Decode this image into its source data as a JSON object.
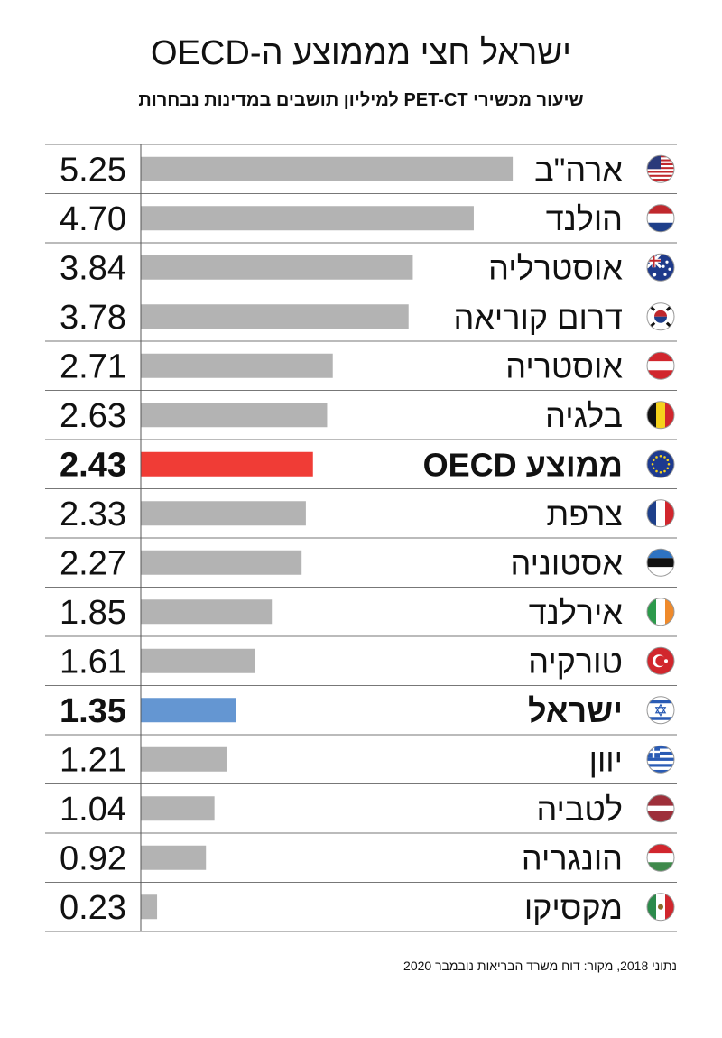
{
  "title": "ישראל חצי מממוצע ה-OECD",
  "subtitle": "שיעור מכשירי PET-CT למיליון תושבים במדינות נבחרות",
  "footer": "נתוני 2018, מקור: דוח משרד הבריאות נובמבר 2020",
  "colors": {
    "default": "#b3b3b3",
    "oecd": "#f03c36",
    "israel": "#6496d2"
  },
  "chart_data": {
    "type": "bar",
    "orientation": "horizontal",
    "title": "ישראל חצי מממוצע ה-OECD",
    "subtitle": "שיעור מכשירי PET-CT למיליון תושבים במדינות נבחרות",
    "xlim": [
      0,
      6
    ],
    "grid": "horizontal row separators",
    "categories": [
      "ארה\"ב",
      "הולנד",
      "אוסטרליה",
      "דרום קוריאה",
      "אוסטריה",
      "בלגיה",
      "ממוצע OECD",
      "צרפת",
      "אסטוניה",
      "אירלנד",
      "טורקיה",
      "ישראל",
      "יוון",
      "לטביה",
      "הונגריה",
      "מקסיקו"
    ],
    "labels": [
      "5.25",
      "4.70",
      "3.84",
      "3.78",
      "2.71",
      "2.63",
      "2.43",
      "2.33",
      "2.27",
      "1.85",
      "1.61",
      "1.35",
      "1.21",
      "1.04",
      "0.92",
      "0.23"
    ],
    "values": [
      5.25,
      4.7,
      3.84,
      3.78,
      2.71,
      2.63,
      2.43,
      2.33,
      2.27,
      1.85,
      1.61,
      1.35,
      1.21,
      1.04,
      0.92,
      0.23
    ],
    "highlight": [
      "default",
      "default",
      "default",
      "default",
      "default",
      "default",
      "oecd",
      "default",
      "default",
      "default",
      "default",
      "israel",
      "default",
      "default",
      "default",
      "default"
    ],
    "flags": [
      "us-flag-icon",
      "netherlands-flag-icon",
      "australia-flag-icon",
      "south-korea-flag-icon",
      "austria-flag-icon",
      "belgium-flag-icon",
      "eu-flag-icon",
      "france-flag-icon",
      "estonia-flag-icon",
      "ireland-flag-icon",
      "turkey-flag-icon",
      "israel-flag-icon",
      "greece-flag-icon",
      "latvia-flag-icon",
      "hungary-flag-icon",
      "mexico-flag-icon"
    ]
  }
}
